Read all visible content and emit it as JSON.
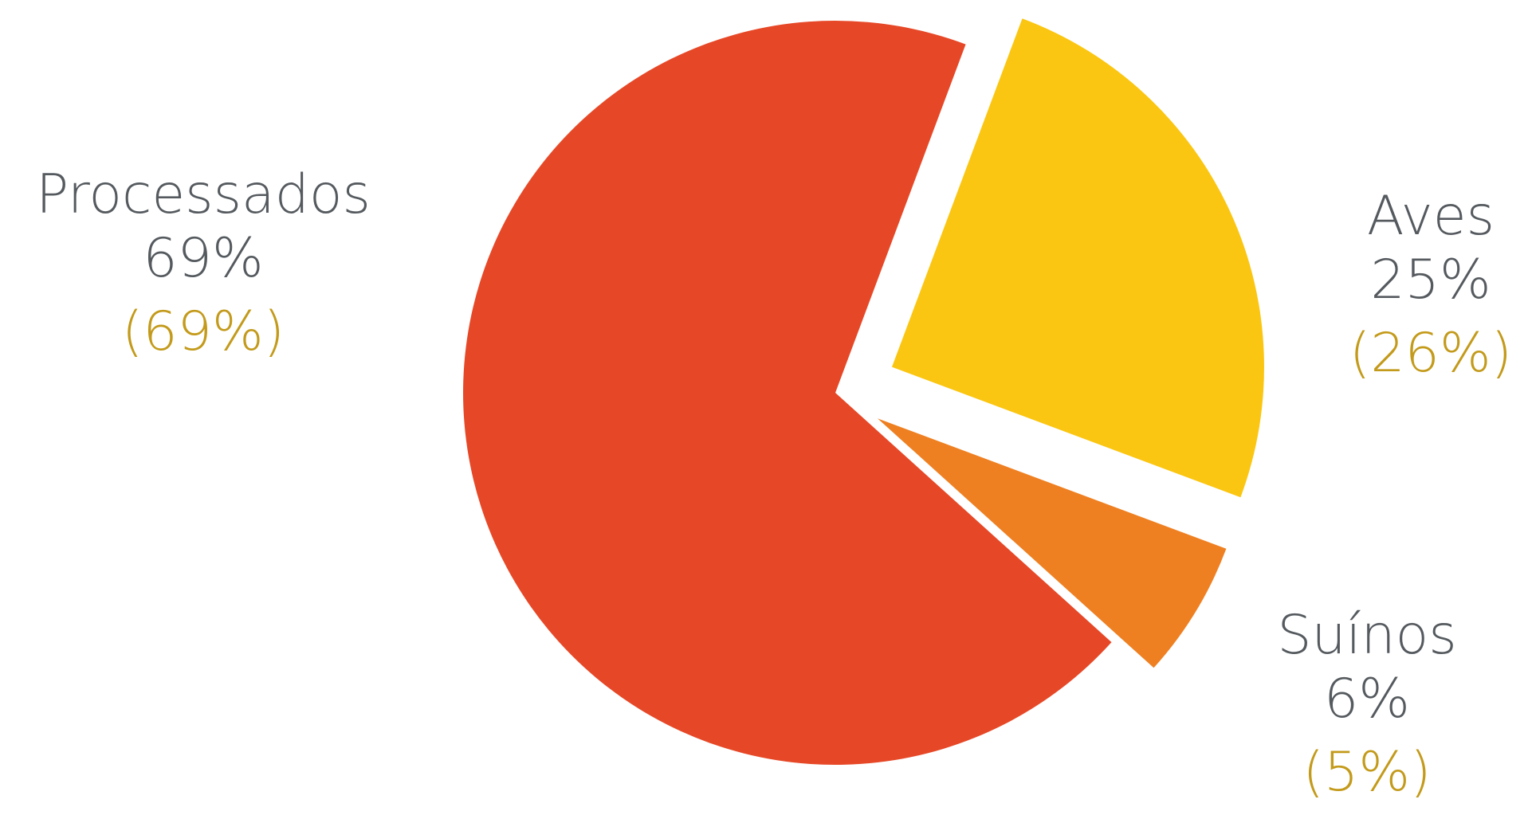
{
  "chart_data": {
    "type": "pie",
    "slices": [
      {
        "name": "Processados",
        "value": 69,
        "label": "69%",
        "secondary_label": "(69%)",
        "color": "#e64827"
      },
      {
        "name": "Aves",
        "value": 25,
        "label": "25%",
        "secondary_label": "(26%)",
        "color": "#fbc611"
      },
      {
        "name": "Suínos",
        "value": 6,
        "label": "6%",
        "secondary_label": "(5%)",
        "color": "#ee8022"
      }
    ],
    "exploded": true,
    "label_colors": {
      "primary": "#555a5f",
      "secondary": "#c39a1a"
    }
  }
}
